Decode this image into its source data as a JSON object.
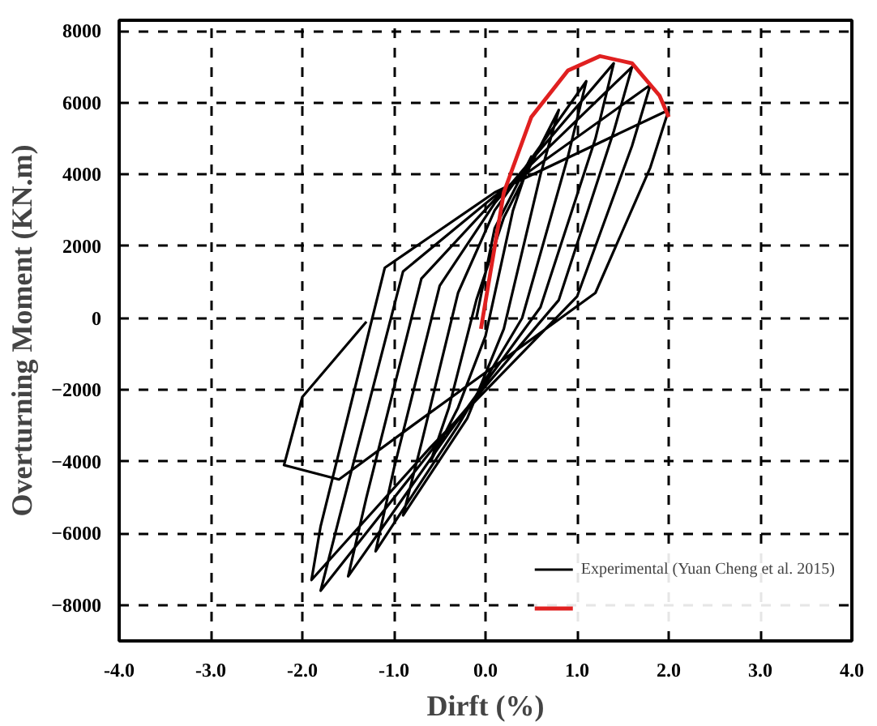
{
  "chart_data": {
    "type": "line",
    "xlabel": "Dirft (%)",
    "ylabel": "Overturning Moment (KN.m)",
    "xlim": [
      -4,
      4
    ],
    "ylim": [
      -9000,
      8300
    ],
    "xticks": [
      {
        "value": -4,
        "label": "-4.0"
      },
      {
        "value": -3,
        "label": "-3.0"
      },
      {
        "value": -2,
        "label": "-2.0"
      },
      {
        "value": -1,
        "label": "-1.0"
      },
      {
        "value": 0,
        "label": "0.0"
      },
      {
        "value": 1,
        "label": "1.0"
      },
      {
        "value": 2,
        "label": "2.0"
      },
      {
        "value": 3,
        "label": "3.0"
      },
      {
        "value": 4,
        "label": "4.0"
      }
    ],
    "yticks": [
      -8000,
      -6000,
      -4000,
      -2000,
      0,
      2000,
      4000,
      6000,
      8000
    ],
    "grid": true,
    "legend": "bottom right",
    "line_style": "solid",
    "marker": "none",
    "series": [
      {
        "name": "Experimental (Yuan Cheng et al. 2015)",
        "color": "#000000",
        "x": [
          -0.1,
          0.1,
          0.5,
          0.3,
          0.0,
          -0.3,
          -0.6,
          -0.4,
          -0.1,
          0.2,
          0.8,
          0.6,
          0.2,
          -0.2,
          -0.9,
          -0.7,
          -0.3,
          0.1,
          1.1,
          0.9,
          0.4,
          -0.3,
          -1.2,
          -1.0,
          -0.5,
          0.1,
          1.4,
          1.2,
          0.6,
          -0.4,
          -1.5,
          -1.3,
          -0.7,
          0.1,
          1.6,
          1.4,
          0.8,
          -0.5,
          -1.8,
          -1.6,
          -0.9,
          0.1,
          1.8,
          1.6,
          1.0,
          -0.6,
          -1.9,
          -1.8,
          -1.1,
          0.1,
          2.0,
          1.8,
          1.2,
          -0.8,
          -1.6,
          -2.2,
          -2.0,
          -1.3
        ],
        "values": [
          0,
          2500,
          4500,
          3000,
          -500,
          -2500,
          -4000,
          -2500,
          500,
          2800,
          5800,
          4000,
          -300,
          -2800,
          -5500,
          -3500,
          700,
          3000,
          6600,
          4500,
          0,
          -3000,
          -6500,
          -4200,
          900,
          3200,
          7100,
          5000,
          300,
          -3200,
          -7200,
          -5000,
          1100,
          3300,
          7000,
          5200,
          500,
          -3400,
          -7600,
          -5600,
          1300,
          3400,
          6500,
          4800,
          600,
          -3600,
          -7300,
          -5800,
          1400,
          3500,
          5800,
          4200,
          700,
          -3000,
          -4500,
          -4100,
          -2200,
          -100
        ]
      },
      {
        "color": "#e02020",
        "x": [
          -0.05,
          0.2,
          0.5,
          0.9,
          1.25,
          1.6,
          1.9,
          2.0
        ],
        "values": [
          -300,
          3500,
          5600,
          6900,
          7300,
          7100,
          6200,
          5600
        ]
      }
    ]
  }
}
